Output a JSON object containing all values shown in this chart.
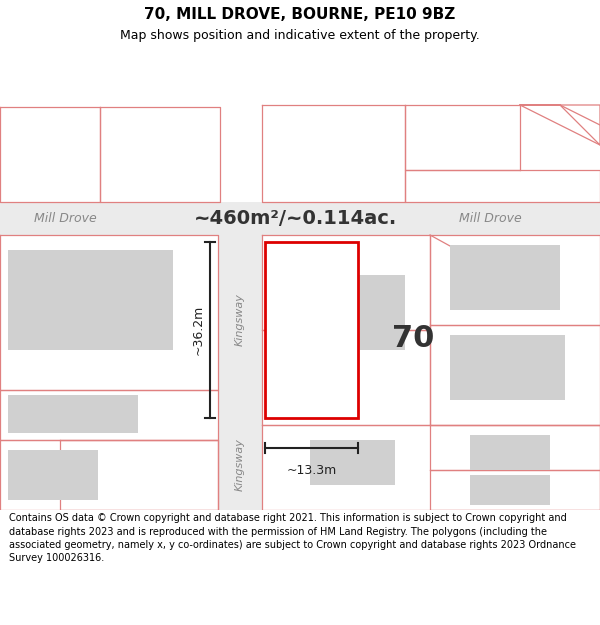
{
  "title": "70, MILL DROVE, BOURNE, PE10 9BZ",
  "subtitle": "Map shows position and indicative extent of the property.",
  "area_text": "~460m²/~0.114ac.",
  "dim_height": "~36.2m",
  "dim_width": "~13.3m",
  "plot_number": "70",
  "road1_left": "Mill Drove",
  "road1_right": "Mill Drove",
  "road2_upper": "Kingsway",
  "road2_lower": "Kingsway",
  "bg_color": "#ffffff",
  "map_bg": "#ffffff",
  "road_fill": "#ebebeb",
  "plot_line_color": "#dd0000",
  "building_color": "#d0d0d0",
  "boundary_color": "#e08080",
  "dim_line_color": "#222222",
  "footer_text": "Contains OS data © Crown copyright and database right 2021. This information is subject to Crown copyright and database rights 2023 and is reproduced with the permission of HM Land Registry. The polygons (including the associated geometry, namely x, y co-ordinates) are subject to Crown copyright and database rights 2023 Ordnance Survey 100026316.",
  "fig_width": 6.0,
  "fig_height": 6.25,
  "title_fontsize": 11,
  "subtitle_fontsize": 9,
  "area_fontsize": 14,
  "road_label_fontsize": 9,
  "plot_num_fontsize": 22,
  "dim_fontsize": 9,
  "footer_fontsize": 7
}
